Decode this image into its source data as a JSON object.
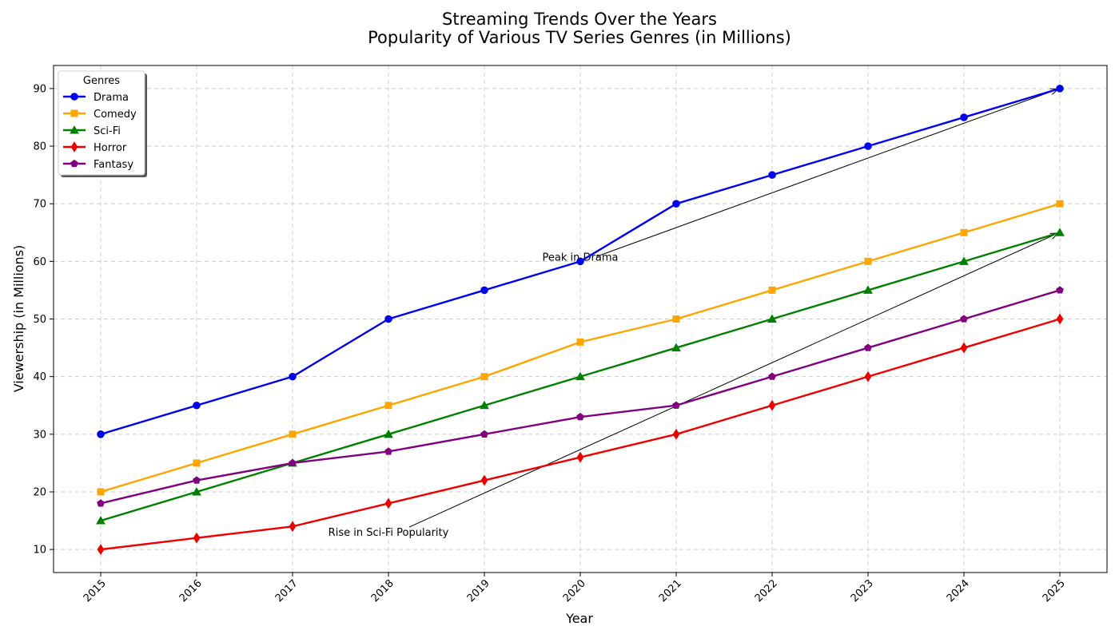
{
  "chart_data": {
    "type": "line",
    "title": "Streaming Trends Over the Years",
    "subtitle": "Popularity of Various TV Series Genres (in Millions)",
    "xlabel": "Year",
    "ylabel": "Viewership (in Millions)",
    "categories": [
      "2015",
      "2016",
      "2017",
      "2018",
      "2019",
      "2020",
      "2021",
      "2022",
      "2023",
      "2024",
      "2025"
    ],
    "ylim": [
      6,
      94
    ],
    "yticks": [
      10,
      20,
      30,
      40,
      50,
      60,
      70,
      80,
      90
    ],
    "grid": true,
    "legend": {
      "title": "Genres",
      "position": "top-left"
    },
    "series": [
      {
        "name": "Drama",
        "color": "#0000ee",
        "marker": "circle",
        "values": [
          30,
          35,
          40,
          50,
          55,
          60,
          70,
          75,
          80,
          85,
          90
        ]
      },
      {
        "name": "Comedy",
        "color": "#ffa500",
        "marker": "square",
        "values": [
          20,
          25,
          30,
          35,
          40,
          46,
          50,
          55,
          60,
          65,
          70
        ]
      },
      {
        "name": "Sci-Fi",
        "color": "#008000",
        "marker": "triangle",
        "values": [
          15,
          20,
          25,
          30,
          35,
          40,
          45,
          50,
          55,
          60,
          65
        ]
      },
      {
        "name": "Horror",
        "color": "#ee0000",
        "marker": "diamond",
        "values": [
          10,
          12,
          14,
          18,
          22,
          26,
          30,
          35,
          40,
          45,
          50
        ]
      },
      {
        "name": "Fantasy",
        "color": "#800080",
        "marker": "pentagon",
        "values": [
          18,
          22,
          25,
          27,
          30,
          33,
          35,
          40,
          45,
          50,
          55
        ]
      }
    ],
    "annotations": [
      {
        "text": "Peak in Drama",
        "text_x": "2020",
        "text_y": 60,
        "arrow_to_x": "2025",
        "arrow_to_y": 90
      },
      {
        "text": "Rise in Sci-Fi Popularity",
        "text_x": "2018",
        "text_y": 15,
        "arrow_to_x": "2025",
        "arrow_to_y": 65
      }
    ]
  }
}
